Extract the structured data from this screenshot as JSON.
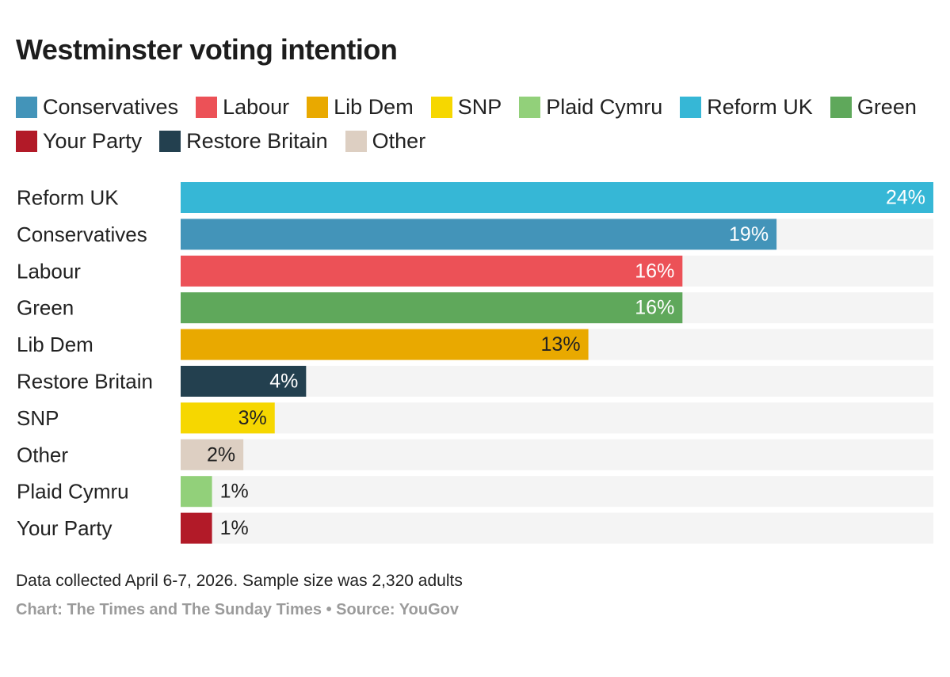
{
  "title": "Westminster voting intention",
  "legend": [
    {
      "label": "Conservatives",
      "color": "#4394B9"
    },
    {
      "label": "Labour",
      "color": "#EC5157"
    },
    {
      "label": "Lib Dem",
      "color": "#E9A900"
    },
    {
      "label": "SNP",
      "color": "#F6D700"
    },
    {
      "label": "Plaid Cymru",
      "color": "#92D07A"
    },
    {
      "label": "Reform UK",
      "color": "#36B7D6"
    },
    {
      "label": "Green",
      "color": "#5FA85B"
    },
    {
      "label": "Your Party",
      "color": "#B21A28"
    },
    {
      "label": "Restore Britain",
      "color": "#23404F"
    },
    {
      "label": "Other",
      "color": "#DDCFC2"
    }
  ],
  "chart_data": {
    "type": "bar",
    "orientation": "horizontal",
    "title": "Westminster voting intention",
    "xlabel": "",
    "ylabel": "",
    "xlim": [
      0,
      24
    ],
    "grid": false,
    "categories": [
      "Reform UK",
      "Conservatives",
      "Labour",
      "Green",
      "Lib Dem",
      "Restore Britain",
      "SNP",
      "Other",
      "Plaid Cymru",
      "Your Party"
    ],
    "values": [
      24,
      19,
      16,
      16,
      13,
      4,
      3,
      2,
      1,
      1
    ],
    "value_labels": [
      "24%",
      "19%",
      "16%",
      "16%",
      "13%",
      "4%",
      "3%",
      "2%",
      "1%",
      "1%"
    ],
    "colors": [
      "#36B7D6",
      "#4394B9",
      "#EC5157",
      "#5FA85B",
      "#E9A900",
      "#23404F",
      "#F6D700",
      "#DDCFC2",
      "#92D07A",
      "#B21A28"
    ],
    "label_colors": [
      "#ffffff",
      "#ffffff",
      "#ffffff",
      "#ffffff",
      "#222222",
      "#ffffff",
      "#222222",
      "#222222",
      "#222222",
      "#222222"
    ],
    "track_color": "#F4F4F4"
  },
  "footer": {
    "note": "Data collected April 6-7, 2026. Sample size was 2,320 adults",
    "source": "Chart: The Times and The Sunday Times • Source: YouGov"
  }
}
